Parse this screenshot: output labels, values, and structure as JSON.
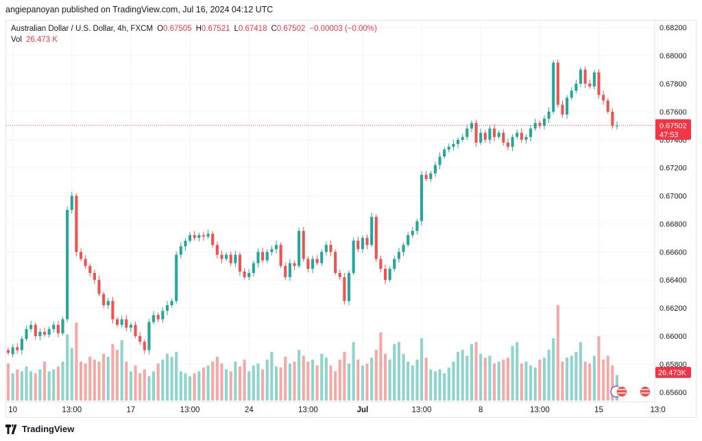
{
  "header": {
    "published": "angiepanoyan published on TradingView.com, Jul 16, 2024 04:12 UTC"
  },
  "legend": {
    "symbol": "Australian Dollar / U.S. Dollar, 4h, FXCM",
    "open_label": "O",
    "open": "0.67505",
    "high_label": "H",
    "high": "0.67521",
    "low_label": "L",
    "low": "0.67418",
    "close_label": "C",
    "close": "0.67502",
    "change": "−0.00003 (−0.00%)",
    "vol_label": "Vol",
    "vol": "26.473 K"
  },
  "footer": {
    "brand": "TradingView"
  },
  "colors": {
    "up": "#26a69a",
    "down": "#ef5350",
    "vol_up": "#8fd4cc",
    "vol_down": "#f4a9a6"
  },
  "chart_data": {
    "type": "candlestick",
    "ylim": [
      0.6555,
      0.6825
    ],
    "y_ticks": [
      "0.68200",
      "0.68000",
      "0.67800",
      "0.67600",
      "0.67400",
      "0.67200",
      "0.67000",
      "0.66800",
      "0.66600",
      "0.66400",
      "0.66200",
      "0.66000",
      "0.65800",
      "0.65600"
    ],
    "x_ticks": [
      {
        "label": "10",
        "bar": 1
      },
      {
        "label": "13:00",
        "bar": 14
      },
      {
        "label": "17",
        "bar": 27
      },
      {
        "label": "13:00",
        "bar": 40
      },
      {
        "label": "24",
        "bar": 53
      },
      {
        "label": "13:00",
        "bar": 66
      },
      {
        "label": "Jul",
        "bar": 78
      },
      {
        "label": "13:00",
        "bar": 91
      },
      {
        "label": "8",
        "bar": 104
      },
      {
        "label": "13:00",
        "bar": 117
      },
      {
        "label": "15",
        "bar": 130
      },
      {
        "label": "13:0",
        "bar": 143
      }
    ],
    "last_price": "0.67502",
    "countdown": "47:53",
    "volume_last": "26.473K",
    "candles": [
      {
        "o": 0.659,
        "c": 0.6588,
        "v": 38
      },
      {
        "o": 0.6587,
        "c": 0.6592,
        "v": 28
      },
      {
        "o": 0.6592,
        "c": 0.659,
        "v": 32
      },
      {
        "o": 0.659,
        "c": 0.6598,
        "v": 30
      },
      {
        "o": 0.6598,
        "c": 0.6605,
        "v": 35
      },
      {
        "o": 0.6605,
        "c": 0.6608,
        "v": 30
      },
      {
        "o": 0.6608,
        "c": 0.66,
        "v": 28
      },
      {
        "o": 0.66,
        "c": 0.6603,
        "v": 32
      },
      {
        "o": 0.6603,
        "c": 0.6601,
        "v": 40
      },
      {
        "o": 0.6601,
        "c": 0.6605,
        "v": 30
      },
      {
        "o": 0.6605,
        "c": 0.6608,
        "v": 32
      },
      {
        "o": 0.6608,
        "c": 0.6602,
        "v": 35
      },
      {
        "o": 0.6602,
        "c": 0.6612,
        "v": 40
      },
      {
        "o": 0.6612,
        "c": 0.669,
        "v": 68
      },
      {
        "o": 0.669,
        "c": 0.67,
        "v": 54
      },
      {
        "o": 0.67,
        "c": 0.666,
        "v": 80
      },
      {
        "o": 0.666,
        "c": 0.6655,
        "v": 40
      },
      {
        "o": 0.6655,
        "c": 0.665,
        "v": 38
      },
      {
        "o": 0.665,
        "c": 0.6645,
        "v": 45
      },
      {
        "o": 0.6645,
        "c": 0.664,
        "v": 42
      },
      {
        "o": 0.664,
        "c": 0.663,
        "v": 40
      },
      {
        "o": 0.663,
        "c": 0.6622,
        "v": 48
      },
      {
        "o": 0.6622,
        "c": 0.6625,
        "v": 45
      },
      {
        "o": 0.6625,
        "c": 0.6612,
        "v": 58
      },
      {
        "o": 0.6612,
        "c": 0.6608,
        "v": 52
      },
      {
        "o": 0.6608,
        "c": 0.6612,
        "v": 62
      },
      {
        "o": 0.6612,
        "c": 0.6606,
        "v": 40
      },
      {
        "o": 0.6606,
        "c": 0.6608,
        "v": 30
      },
      {
        "o": 0.6608,
        "c": 0.66,
        "v": 36
      },
      {
        "o": 0.66,
        "c": 0.6596,
        "v": 28
      },
      {
        "o": 0.6596,
        "c": 0.659,
        "v": 32
      },
      {
        "o": 0.659,
        "c": 0.661,
        "v": 25
      },
      {
        "o": 0.661,
        "c": 0.6615,
        "v": 30
      },
      {
        "o": 0.6615,
        "c": 0.6612,
        "v": 38
      },
      {
        "o": 0.6612,
        "c": 0.6618,
        "v": 42
      },
      {
        "o": 0.6618,
        "c": 0.6622,
        "v": 48
      },
      {
        "o": 0.6622,
        "c": 0.6625,
        "v": 45
      },
      {
        "o": 0.6625,
        "c": 0.6658,
        "v": 50
      },
      {
        "o": 0.6658,
        "c": 0.6664,
        "v": 30
      },
      {
        "o": 0.6664,
        "c": 0.6668,
        "v": 28
      },
      {
        "o": 0.6668,
        "c": 0.6672,
        "v": 25
      },
      {
        "o": 0.6672,
        "c": 0.667,
        "v": 28
      },
      {
        "o": 0.667,
        "c": 0.6672,
        "v": 30
      },
      {
        "o": 0.6672,
        "c": 0.6671,
        "v": 34
      },
      {
        "o": 0.6671,
        "c": 0.6673,
        "v": 36
      },
      {
        "o": 0.6673,
        "c": 0.6665,
        "v": 40
      },
      {
        "o": 0.6665,
        "c": 0.6658,
        "v": 45
      },
      {
        "o": 0.6658,
        "c": 0.6655,
        "v": 38
      },
      {
        "o": 0.6655,
        "c": 0.6658,
        "v": 32
      },
      {
        "o": 0.6658,
        "c": 0.6652,
        "v": 30
      },
      {
        "o": 0.6652,
        "c": 0.6658,
        "v": 40
      },
      {
        "o": 0.6658,
        "c": 0.6646,
        "v": 35
      },
      {
        "o": 0.6646,
        "c": 0.6642,
        "v": 42
      },
      {
        "o": 0.6642,
        "c": 0.6645,
        "v": 30
      },
      {
        "o": 0.6645,
        "c": 0.6652,
        "v": 36
      },
      {
        "o": 0.6652,
        "c": 0.666,
        "v": 38
      },
      {
        "o": 0.666,
        "c": 0.6654,
        "v": 32
      },
      {
        "o": 0.6654,
        "c": 0.666,
        "v": 42
      },
      {
        "o": 0.666,
        "c": 0.6662,
        "v": 50
      },
      {
        "o": 0.6662,
        "c": 0.6665,
        "v": 35
      },
      {
        "o": 0.6665,
        "c": 0.665,
        "v": 34
      },
      {
        "o": 0.665,
        "c": 0.6642,
        "v": 45
      },
      {
        "o": 0.6642,
        "c": 0.6652,
        "v": 38
      },
      {
        "o": 0.6652,
        "c": 0.665,
        "v": 40
      },
      {
        "o": 0.665,
        "c": 0.6675,
        "v": 52
      },
      {
        "o": 0.6675,
        "c": 0.6655,
        "v": 46
      },
      {
        "o": 0.6655,
        "c": 0.6648,
        "v": 40
      },
      {
        "o": 0.6648,
        "c": 0.6655,
        "v": 42
      },
      {
        "o": 0.6655,
        "c": 0.6652,
        "v": 36
      },
      {
        "o": 0.6652,
        "c": 0.666,
        "v": 48
      },
      {
        "o": 0.666,
        "c": 0.6665,
        "v": 44
      },
      {
        "o": 0.6665,
        "c": 0.666,
        "v": 36
      },
      {
        "o": 0.666,
        "c": 0.6645,
        "v": 30
      },
      {
        "o": 0.6645,
        "c": 0.6642,
        "v": 42
      },
      {
        "o": 0.6642,
        "c": 0.6625,
        "v": 50
      },
      {
        "o": 0.6625,
        "c": 0.6645,
        "v": 38
      },
      {
        "o": 0.6645,
        "c": 0.6668,
        "v": 60
      },
      {
        "o": 0.6668,
        "c": 0.6662,
        "v": 42
      },
      {
        "o": 0.6662,
        "c": 0.667,
        "v": 36
      },
      {
        "o": 0.667,
        "c": 0.6665,
        "v": 38
      },
      {
        "o": 0.6665,
        "c": 0.6685,
        "v": 44
      },
      {
        "o": 0.6685,
        "c": 0.6655,
        "v": 52
      },
      {
        "o": 0.6655,
        "c": 0.6648,
        "v": 70
      },
      {
        "o": 0.6648,
        "c": 0.664,
        "v": 48
      },
      {
        "o": 0.664,
        "c": 0.6648,
        "v": 42
      },
      {
        "o": 0.6648,
        "c": 0.6655,
        "v": 58
      },
      {
        "o": 0.6655,
        "c": 0.666,
        "v": 60
      },
      {
        "o": 0.666,
        "c": 0.6665,
        "v": 48
      },
      {
        "o": 0.6665,
        "c": 0.6672,
        "v": 40
      },
      {
        "o": 0.6672,
        "c": 0.6675,
        "v": 36
      },
      {
        "o": 0.6675,
        "c": 0.6682,
        "v": 42
      },
      {
        "o": 0.6682,
        "c": 0.6715,
        "v": 64
      },
      {
        "o": 0.6715,
        "c": 0.6712,
        "v": 44
      },
      {
        "o": 0.6712,
        "c": 0.6716,
        "v": 32
      },
      {
        "o": 0.6716,
        "c": 0.6722,
        "v": 30
      },
      {
        "o": 0.6722,
        "c": 0.6728,
        "v": 32
      },
      {
        "o": 0.6728,
        "c": 0.6733,
        "v": 28
      },
      {
        "o": 0.6733,
        "c": 0.6735,
        "v": 34
      },
      {
        "o": 0.6735,
        "c": 0.6737,
        "v": 40
      },
      {
        "o": 0.6737,
        "c": 0.674,
        "v": 50
      },
      {
        "o": 0.674,
        "c": 0.6742,
        "v": 52
      },
      {
        "o": 0.6742,
        "c": 0.6748,
        "v": 46
      },
      {
        "o": 0.6748,
        "c": 0.6752,
        "v": 58
      },
      {
        "o": 0.6752,
        "c": 0.6738,
        "v": 60
      },
      {
        "o": 0.6738,
        "c": 0.6745,
        "v": 48
      },
      {
        "o": 0.6745,
        "c": 0.674,
        "v": 44
      },
      {
        "o": 0.674,
        "c": 0.6748,
        "v": 46
      },
      {
        "o": 0.6748,
        "c": 0.6742,
        "v": 38
      },
      {
        "o": 0.6742,
        "c": 0.6745,
        "v": 40
      },
      {
        "o": 0.6745,
        "c": 0.6738,
        "v": 42
      },
      {
        "o": 0.6738,
        "c": 0.6735,
        "v": 44
      },
      {
        "o": 0.6735,
        "c": 0.6742,
        "v": 56
      },
      {
        "o": 0.6742,
        "c": 0.6745,
        "v": 60
      },
      {
        "o": 0.6745,
        "c": 0.674,
        "v": 38
      },
      {
        "o": 0.674,
        "c": 0.6742,
        "v": 40
      },
      {
        "o": 0.6742,
        "c": 0.6748,
        "v": 36
      },
      {
        "o": 0.6748,
        "c": 0.6752,
        "v": 34
      },
      {
        "o": 0.6752,
        "c": 0.675,
        "v": 42
      },
      {
        "o": 0.675,
        "c": 0.6755,
        "v": 44
      },
      {
        "o": 0.6755,
        "c": 0.676,
        "v": 52
      },
      {
        "o": 0.676,
        "c": 0.6795,
        "v": 64
      },
      {
        "o": 0.6795,
        "c": 0.6765,
        "v": 98
      },
      {
        "o": 0.6765,
        "c": 0.6758,
        "v": 40
      },
      {
        "o": 0.6758,
        "c": 0.677,
        "v": 44
      },
      {
        "o": 0.677,
        "c": 0.6775,
        "v": 46
      },
      {
        "o": 0.6775,
        "c": 0.678,
        "v": 50
      },
      {
        "o": 0.678,
        "c": 0.679,
        "v": 60
      },
      {
        "o": 0.679,
        "c": 0.678,
        "v": 40
      },
      {
        "o": 0.678,
        "c": 0.6778,
        "v": 38
      },
      {
        "o": 0.6778,
        "c": 0.6788,
        "v": 46
      },
      {
        "o": 0.6788,
        "c": 0.6772,
        "v": 66
      },
      {
        "o": 0.6772,
        "c": 0.6768,
        "v": 42
      },
      {
        "o": 0.6768,
        "c": 0.676,
        "v": 46
      },
      {
        "o": 0.676,
        "c": 0.675,
        "v": 36
      },
      {
        "o": 0.675,
        "c": 0.675,
        "v": 26
      }
    ]
  }
}
